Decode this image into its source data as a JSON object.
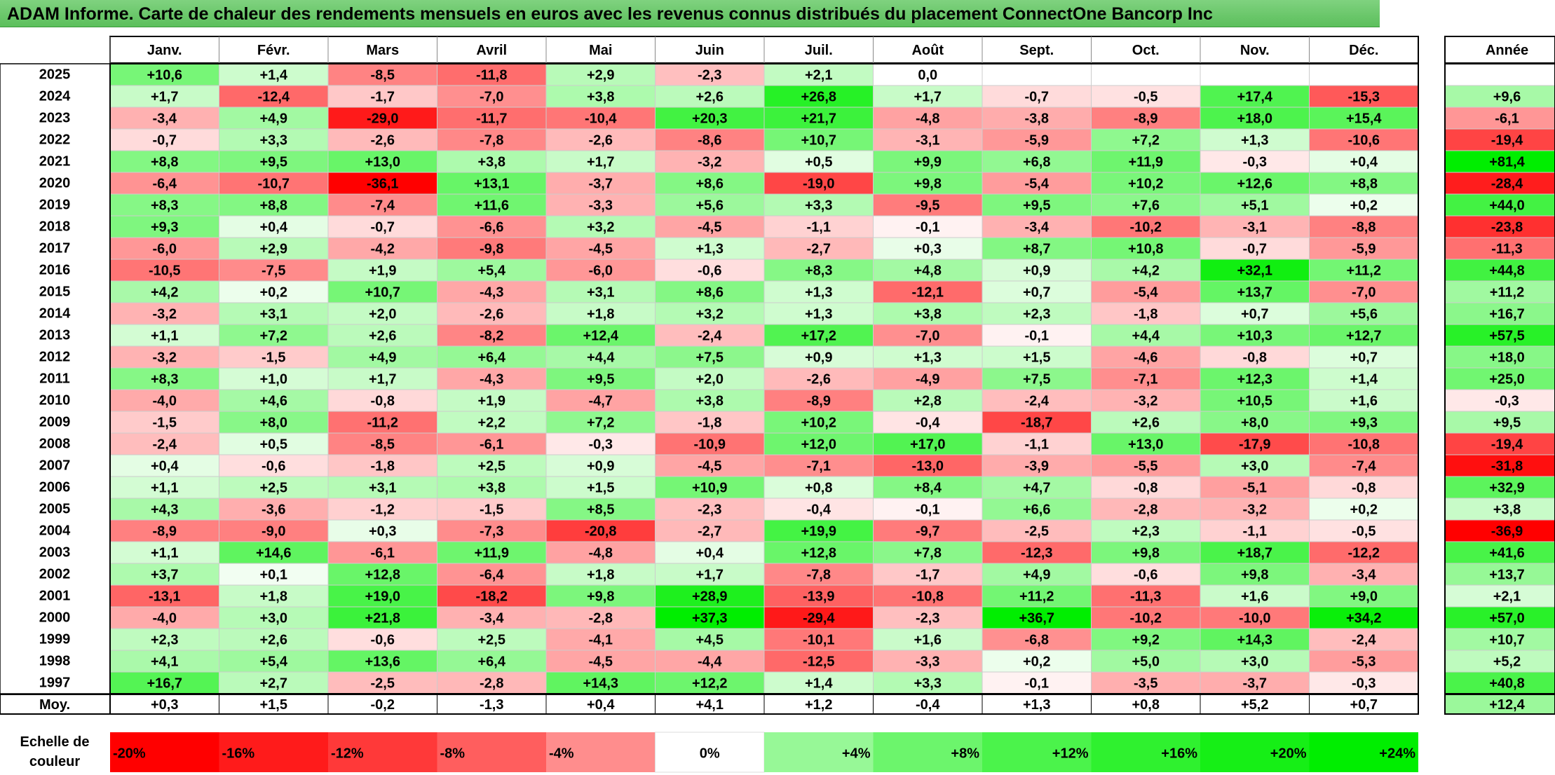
{
  "title": "ADAM Informe. Carte de chaleur des rendements mensuels en euros avec les revenus connus distribués du placement ConnectOne Bancorp Inc",
  "chart_data": {
    "type": "heatmap",
    "months": [
      "Janv.",
      "Févr.",
      "Mars",
      "Avril",
      "Mai",
      "Juin",
      "Juil.",
      "Août",
      "Sept.",
      "Oct.",
      "Nov.",
      "Déc."
    ],
    "year_label": "Année",
    "average_label": "Moy.",
    "rows": [
      {
        "year": "2025",
        "values": [
          "+10,6",
          "+1,4",
          "-8,5",
          "-11,8",
          "+2,9",
          "-2,3",
          "+2,1",
          "0,0",
          "",
          "",
          "",
          ""
        ],
        "annual": ""
      },
      {
        "year": "2024",
        "values": [
          "+1,7",
          "-12,4",
          "-1,7",
          "-7,0",
          "+3,8",
          "+2,6",
          "+26,8",
          "+1,7",
          "-0,7",
          "-0,5",
          "+17,4",
          "-15,3"
        ],
        "annual": "+9,6"
      },
      {
        "year": "2023",
        "values": [
          "-3,4",
          "+4,9",
          "-29,0",
          "-11,7",
          "-10,4",
          "+20,3",
          "+21,7",
          "-4,8",
          "-3,8",
          "-8,9",
          "+18,0",
          "+15,4"
        ],
        "annual": "-6,1"
      },
      {
        "year": "2022",
        "values": [
          "-0,7",
          "+3,3",
          "-2,6",
          "-7,8",
          "-2,6",
          "-8,6",
          "+10,7",
          "-3,1",
          "-5,9",
          "+7,2",
          "+1,3",
          "-10,6"
        ],
        "annual": "-19,4"
      },
      {
        "year": "2021",
        "values": [
          "+8,8",
          "+9,5",
          "+13,0",
          "+3,8",
          "+1,7",
          "-3,2",
          "+0,5",
          "+9,9",
          "+6,8",
          "+11,9",
          "-0,3",
          "+0,4"
        ],
        "annual": "+81,4"
      },
      {
        "year": "2020",
        "values": [
          "-6,4",
          "-10,7",
          "-36,1",
          "+13,1",
          "-3,7",
          "+8,6",
          "-19,0",
          "+9,8",
          "-5,4",
          "+10,2",
          "+12,6",
          "+8,8"
        ],
        "annual": "-28,4"
      },
      {
        "year": "2019",
        "values": [
          "+8,3",
          "+8,8",
          "-7,4",
          "+11,6",
          "-3,3",
          "+5,6",
          "+3,3",
          "-9,5",
          "+9,5",
          "+7,6",
          "+5,1",
          "+0,2"
        ],
        "annual": "+44,0"
      },
      {
        "year": "2018",
        "values": [
          "+9,3",
          "+0,4",
          "-0,7",
          "-6,6",
          "+3,2",
          "-4,5",
          "-1,1",
          "-0,1",
          "-3,4",
          "-10,2",
          "-3,1",
          "-8,8"
        ],
        "annual": "-23,8"
      },
      {
        "year": "2017",
        "values": [
          "-6,0",
          "+2,9",
          "-4,2",
          "-9,8",
          "-4,5",
          "+1,3",
          "-2,7",
          "+0,3",
          "+8,7",
          "+10,8",
          "-0,7",
          "-5,9"
        ],
        "annual": "-11,3"
      },
      {
        "year": "2016",
        "values": [
          "-10,5",
          "-7,5",
          "+1,9",
          "+5,4",
          "-6,0",
          "-0,6",
          "+8,3",
          "+4,8",
          "+0,9",
          "+4,2",
          "+32,1",
          "+11,2"
        ],
        "annual": "+44,8"
      },
      {
        "year": "2015",
        "values": [
          "+4,2",
          "+0,2",
          "+10,7",
          "-4,3",
          "+3,1",
          "+8,6",
          "+1,3",
          "-12,1",
          "+0,7",
          "-5,4",
          "+13,7",
          "-7,0"
        ],
        "annual": "+11,2"
      },
      {
        "year": "2014",
        "values": [
          "-3,2",
          "+3,1",
          "+2,0",
          "-2,6",
          "+1,8",
          "+3,2",
          "+1,3",
          "+3,8",
          "+2,3",
          "-1,8",
          "+0,7",
          "+5,6"
        ],
        "annual": "+16,7"
      },
      {
        "year": "2013",
        "values": [
          "+1,1",
          "+7,2",
          "+2,6",
          "-8,2",
          "+12,4",
          "-2,4",
          "+17,2",
          "-7,0",
          "-0,1",
          "+4,4",
          "+10,3",
          "+12,7"
        ],
        "annual": "+57,5"
      },
      {
        "year": "2012",
        "values": [
          "-3,2",
          "-1,5",
          "+4,9",
          "+6,4",
          "+4,4",
          "+7,5",
          "+0,9",
          "+1,3",
          "+1,5",
          "-4,6",
          "-0,8",
          "+0,7"
        ],
        "annual": "+18,0"
      },
      {
        "year": "2011",
        "values": [
          "+8,3",
          "+1,0",
          "+1,7",
          "-4,3",
          "+9,5",
          "+2,0",
          "-2,6",
          "-4,9",
          "+7,5",
          "-7,1",
          "+12,3",
          "+1,4"
        ],
        "annual": "+25,0"
      },
      {
        "year": "2010",
        "values": [
          "-4,0",
          "+4,6",
          "-0,8",
          "+1,9",
          "-4,7",
          "+3,8",
          "-8,9",
          "+2,8",
          "-2,4",
          "-3,2",
          "+10,5",
          "+1,6"
        ],
        "annual": "-0,3"
      },
      {
        "year": "2009",
        "values": [
          "-1,5",
          "+8,0",
          "-11,2",
          "+2,2",
          "+7,2",
          "-1,8",
          "+10,2",
          "-0,4",
          "-18,7",
          "+2,6",
          "+8,0",
          "+9,3"
        ],
        "annual": "+9,5"
      },
      {
        "year": "2008",
        "values": [
          "-2,4",
          "+0,5",
          "-8,5",
          "-6,1",
          "-0,3",
          "-10,9",
          "+12,0",
          "+17,0",
          "-1,1",
          "+13,0",
          "-17,9",
          "-10,8"
        ],
        "annual": "-19,4"
      },
      {
        "year": "2007",
        "values": [
          "+0,4",
          "-0,6",
          "-1,8",
          "+2,5",
          "+0,9",
          "-4,5",
          "-7,1",
          "-13,0",
          "-3,9",
          "-5,5",
          "+3,0",
          "-7,4"
        ],
        "annual": "-31,8"
      },
      {
        "year": "2006",
        "values": [
          "+1,1",
          "+2,5",
          "+3,1",
          "+3,8",
          "+1,5",
          "+10,9",
          "+0,8",
          "+8,4",
          "+4,7",
          "-0,8",
          "-5,1",
          "-0,8"
        ],
        "annual": "+32,9"
      },
      {
        "year": "2005",
        "values": [
          "+4,3",
          "-3,6",
          "-1,2",
          "-1,5",
          "+8,5",
          "-2,3",
          "-0,4",
          "-0,1",
          "+6,6",
          "-2,8",
          "-3,2",
          "+0,2"
        ],
        "annual": "+3,8"
      },
      {
        "year": "2004",
        "values": [
          "-8,9",
          "-9,0",
          "+0,3",
          "-7,3",
          "-20,8",
          "-2,7",
          "+19,9",
          "-9,7",
          "-2,5",
          "+2,3",
          "-1,1",
          "-0,5"
        ],
        "annual": "-36,9"
      },
      {
        "year": "2003",
        "values": [
          "+1,1",
          "+14,6",
          "-6,1",
          "+11,9",
          "-4,8",
          "+0,4",
          "+12,8",
          "+7,8",
          "-12,3",
          "+9,8",
          "+18,7",
          "-12,2"
        ],
        "annual": "+41,6"
      },
      {
        "year": "2002",
        "values": [
          "+3,7",
          "+0,1",
          "+12,8",
          "-6,4",
          "+1,8",
          "+1,7",
          "-7,8",
          "-1,7",
          "+4,9",
          "-0,6",
          "+9,8",
          "-3,4"
        ],
        "annual": "+13,7"
      },
      {
        "year": "2001",
        "values": [
          "-13,1",
          "+1,8",
          "+19,0",
          "-18,2",
          "+9,8",
          "+28,9",
          "-13,9",
          "-10,8",
          "+11,2",
          "-11,3",
          "+1,6",
          "+9,0"
        ],
        "annual": "+2,1"
      },
      {
        "year": "2000",
        "values": [
          "-4,0",
          "+3,0",
          "+21,8",
          "-3,4",
          "-2,8",
          "+37,3",
          "-29,4",
          "-2,3",
          "+36,7",
          "-10,2",
          "-10,0",
          "+34,2"
        ],
        "annual": "+57,0"
      },
      {
        "year": "1999",
        "values": [
          "+2,3",
          "+2,6",
          "-0,6",
          "+2,5",
          "-4,1",
          "+4,5",
          "-10,1",
          "+1,6",
          "-6,8",
          "+9,2",
          "+14,3",
          "-2,4"
        ],
        "annual": "+10,7"
      },
      {
        "year": "1998",
        "values": [
          "+4,1",
          "+5,4",
          "+13,6",
          "+6,4",
          "-4,5",
          "-4,4",
          "-12,5",
          "-3,3",
          "+0,2",
          "+5,0",
          "+3,0",
          "-5,3"
        ],
        "annual": "+5,2"
      },
      {
        "year": "1997",
        "values": [
          "+16,7",
          "+2,7",
          "-2,5",
          "-2,8",
          "+14,3",
          "+12,2",
          "+1,4",
          "+3,3",
          "-0,1",
          "-3,5",
          "-3,7",
          "-0,3"
        ],
        "annual": "+40,8"
      }
    ],
    "averages": [
      "+0,3",
      "+1,5",
      "-0,2",
      "-1,3",
      "+0,4",
      "+4,1",
      "+1,2",
      "-0,4",
      "+1,3",
      "+0,8",
      "+5,2",
      "+0,7"
    ],
    "average_annual": "+12,4",
    "color_scale": {
      "label_line1": "Echelle de",
      "label_line2": "couleur",
      "steps": [
        "-20%",
        "-16%",
        "-12%",
        "-8%",
        "-4%",
        "0%",
        "+4%",
        "+8%",
        "+12%",
        "+16%",
        "+20%",
        "+24%"
      ],
      "negative_color": "#ff0000",
      "neutral_color": "#ffffff",
      "positive_color": "#00ee00"
    },
    "title_bar_color": "#6fcb6f"
  }
}
